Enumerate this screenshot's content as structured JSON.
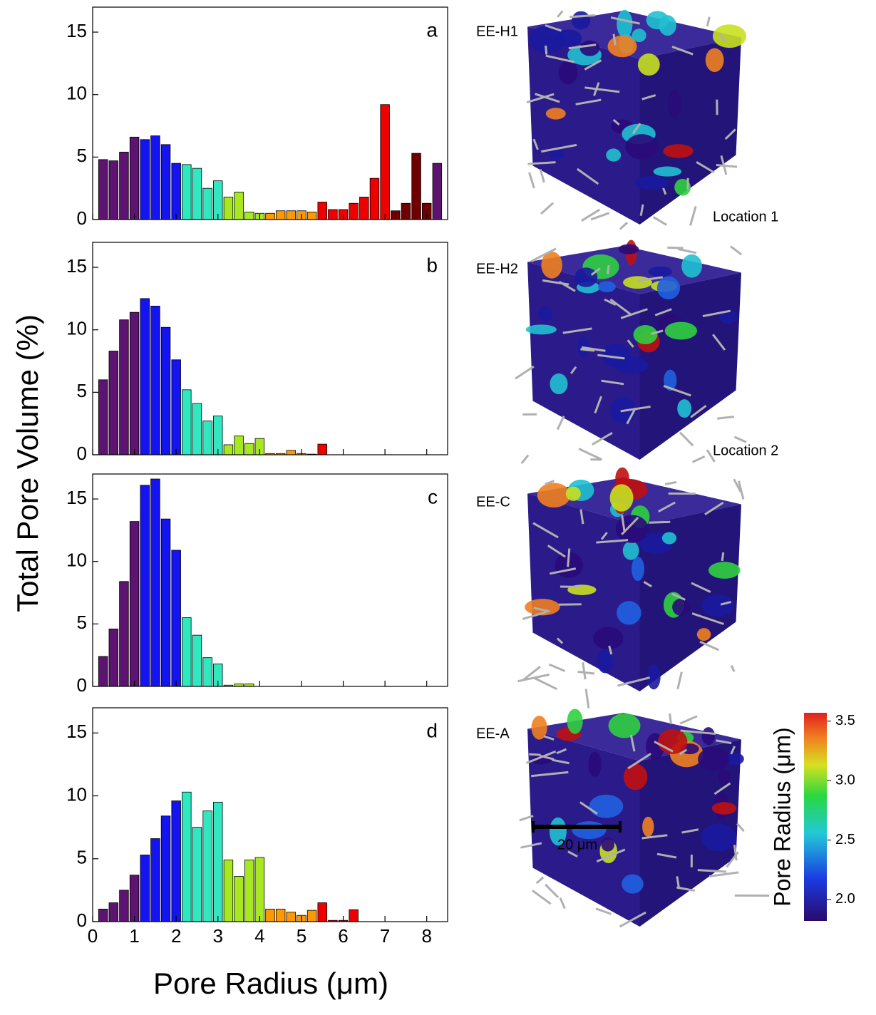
{
  "y_label": "Total Pore Volume (%)",
  "x_label": "Pore Radius (μm)",
  "chart_data": [
    {
      "type": "histogram",
      "panel_label": "a",
      "bins": [
        0.125,
        0.375,
        0.625,
        0.875,
        1.125,
        1.375,
        1.625,
        1.875,
        2.125,
        2.375,
        2.625,
        2.875,
        3.125,
        3.375,
        3.625,
        3.875,
        4.125,
        4.375,
        4.625,
        4.875,
        5.125,
        5.375,
        5.625,
        5.875,
        6.125,
        6.375,
        6.625,
        6.875,
        7.125,
        7.375,
        7.625,
        7.875,
        8.125,
        8.375
      ],
      "values": [
        4.8,
        4.7,
        5.4,
        6.6,
        6.4,
        6.7,
        6.0,
        4.5,
        4.4,
        4.1,
        2.5,
        3.1,
        1.8,
        2.2,
        0.6,
        0.5,
        0.5,
        0.7,
        0.7,
        0.7,
        0.6,
        1.4,
        0.8,
        0.8,
        1.3,
        1.8,
        3.3,
        9.2,
        0.7,
        1.3,
        5.3,
        1.3,
        4.5
      ],
      "colors": [
        "#5c1470",
        "#5c1470",
        "#5c1470",
        "#5c1470",
        "#1414f0",
        "#1414f0",
        "#1414f0",
        "#1414f0",
        "#30e8c0",
        "#30e8c0",
        "#30e8c0",
        "#30e8c0",
        "#a8e820",
        "#a8e820",
        "#a8e820",
        "#a8e820",
        "#ff9900",
        "#ff9900",
        "#ff9900",
        "#ff9900",
        "#ff9900",
        "#ee0000",
        "#ee0000",
        "#ee0000",
        "#ee0000",
        "#ee0000",
        "#ee0000",
        "#ee0000",
        "#700000",
        "#700000",
        "#700000",
        "#700000",
        "#5c1470"
      ],
      "xlim": [
        0,
        8.5
      ],
      "xticks": [
        0,
        1,
        2,
        3,
        4,
        5,
        6,
        7,
        8
      ],
      "ylim": [
        0,
        17
      ],
      "yticks": [
        0,
        5,
        10,
        15
      ]
    },
    {
      "type": "histogram",
      "panel_label": "b",
      "bins": [
        0.125,
        0.375,
        0.625,
        0.875,
        1.125,
        1.375,
        1.625,
        1.875,
        2.125,
        2.375,
        2.625,
        2.875,
        3.125,
        3.375,
        3.625,
        3.875,
        4.125,
        4.375,
        4.625,
        4.875,
        5.125,
        5.375,
        5.625
      ],
      "values": [
        6.0,
        8.3,
        10.8,
        11.4,
        12.5,
        11.9,
        10.2,
        7.6,
        5.2,
        4.1,
        2.7,
        3.1,
        0.8,
        1.5,
        0.9,
        1.3,
        0.1,
        0.1,
        0.35,
        0.1,
        0.05,
        0.85
      ],
      "colors": [
        "#5c1470",
        "#5c1470",
        "#5c1470",
        "#5c1470",
        "#1414f0",
        "#1414f0",
        "#1414f0",
        "#1414f0",
        "#30e8c0",
        "#30e8c0",
        "#30e8c0",
        "#30e8c0",
        "#a8e820",
        "#a8e820",
        "#a8e820",
        "#a8e820",
        "#ff9900",
        "#ff9900",
        "#ff9900",
        "#ff9900",
        "#ff9900",
        "#ee0000"
      ],
      "xlim": [
        0,
        8.5
      ],
      "xticks": [
        0,
        1,
        2,
        3,
        4,
        5,
        6,
        7,
        8
      ],
      "ylim": [
        0,
        17
      ],
      "yticks": [
        0,
        5,
        10,
        15
      ]
    },
    {
      "type": "histogram",
      "panel_label": "c",
      "bins": [
        0.125,
        0.375,
        0.625,
        0.875,
        1.125,
        1.375,
        1.625,
        1.875,
        2.125,
        2.375,
        2.625,
        2.875,
        3.125,
        3.375,
        3.625,
        3.875
      ],
      "values": [
        2.4,
        4.6,
        8.4,
        13.2,
        16.1,
        16.6,
        13.4,
        10.9,
        5.5,
        4.1,
        2.3,
        1.8,
        0.1,
        0.2,
        0.2
      ],
      "colors": [
        "#5c1470",
        "#5c1470",
        "#5c1470",
        "#5c1470",
        "#1414f0",
        "#1414f0",
        "#1414f0",
        "#1414f0",
        "#30e8c0",
        "#30e8c0",
        "#30e8c0",
        "#30e8c0",
        "#a8e820",
        "#a8e820",
        "#a8e820"
      ],
      "xlim": [
        0,
        8.5
      ],
      "xticks": [
        0,
        1,
        2,
        3,
        4,
        5,
        6,
        7,
        8
      ],
      "ylim": [
        0,
        17
      ],
      "yticks": [
        0,
        5,
        10,
        15
      ]
    },
    {
      "type": "histogram",
      "panel_label": "d",
      "bins": [
        0.125,
        0.375,
        0.625,
        0.875,
        1.125,
        1.375,
        1.625,
        1.875,
        2.125,
        2.375,
        2.625,
        2.875,
        3.125,
        3.375,
        3.625,
        3.875,
        4.125,
        4.375,
        4.625,
        4.875,
        5.125,
        5.375,
        5.625,
        5.875,
        6.125,
        6.375
      ],
      "values": [
        1.0,
        1.5,
        2.5,
        3.7,
        5.3,
        6.6,
        8.4,
        9.6,
        10.3,
        7.5,
        8.8,
        9.5,
        4.9,
        3.6,
        4.9,
        5.1,
        1.0,
        1.0,
        0.75,
        0.5,
        0.9,
        1.5,
        0.1,
        0.1,
        0.95
      ],
      "colors": [
        "#5c1470",
        "#5c1470",
        "#5c1470",
        "#5c1470",
        "#1414f0",
        "#1414f0",
        "#1414f0",
        "#1414f0",
        "#30e8c0",
        "#30e8c0",
        "#30e8c0",
        "#30e8c0",
        "#a8e820",
        "#a8e820",
        "#a8e820",
        "#a8e820",
        "#ff9900",
        "#ff9900",
        "#ff9900",
        "#ff9900",
        "#ff9900",
        "#ee0000",
        "#ee0000",
        "#ee0000",
        "#ee0000"
      ],
      "xlim": [
        0,
        8.5
      ],
      "xticks": [
        0,
        1,
        2,
        3,
        4,
        5,
        6,
        7,
        8
      ],
      "ylim": [
        0,
        17
      ],
      "yticks": [
        0,
        5,
        10,
        15
      ]
    }
  ],
  "renderings": [
    {
      "label": "EE-H1",
      "location": "Location 1"
    },
    {
      "label": "EE-H2",
      "location": "Location 2"
    },
    {
      "label": "EE-C"
    },
    {
      "label": "EE-A"
    }
  ],
  "scale_bar": "20 μm",
  "colorbar": {
    "title": "Pore Radius (μm)",
    "ylim": [
      1.82,
      3.57
    ],
    "yticks": [
      {
        "value": 2,
        "label": "2.0"
      },
      2.5,
      {
        "value": 3,
        "label": "3.0"
      },
      3.5
    ]
  }
}
